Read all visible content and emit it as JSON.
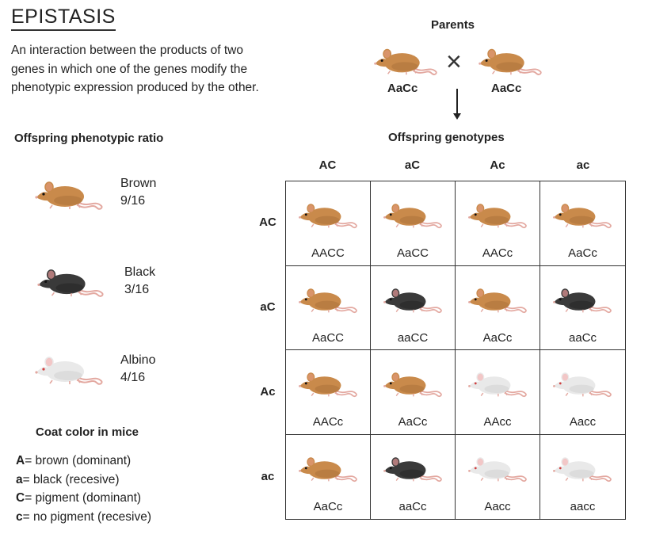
{
  "title": "EPISTASIS",
  "description": "An interaction between the products of two genes in which one of the genes modify the phenotypic expression produced by the other.",
  "colors": {
    "brown": "#c98a4b",
    "black": "#3a3a3a",
    "albino": "#e9e9e9",
    "tail": "#e3a8a0"
  },
  "ratio": {
    "heading": "Offspring phenotypic ratio",
    "items": [
      {
        "name": "Brown",
        "ratio": "9/16",
        "color": "brown"
      },
      {
        "name": "Black",
        "ratio": "3/16",
        "color": "black"
      },
      {
        "name": "Albino",
        "ratio": "4/16",
        "color": "albino"
      }
    ]
  },
  "key": {
    "heading": "Coat color in mice",
    "entries": [
      {
        "allele": "A",
        "text": "= brown (dominant)"
      },
      {
        "allele": "a",
        "text": "= black (recesive)"
      },
      {
        "allele": "C",
        "text": "= pigment (dominant)"
      },
      {
        "allele": "c",
        "text": "= no pigment (recesive)"
      }
    ]
  },
  "parents": {
    "heading": "Parents",
    "cross_symbol": "×",
    "left": "AaCc",
    "right": "AaCc"
  },
  "offspring": {
    "heading": "Offspring genotypes",
    "columns": [
      "AC",
      "aC",
      "Ac",
      "ac"
    ],
    "rows": [
      "AC",
      "aC",
      "Ac",
      "ac"
    ],
    "cells": [
      [
        {
          "genotype": "AACC",
          "color": "brown"
        },
        {
          "genotype": "AaCC",
          "color": "brown"
        },
        {
          "genotype": "AACc",
          "color": "brown"
        },
        {
          "genotype": "AaCc",
          "color": "brown"
        }
      ],
      [
        {
          "genotype": "AaCC",
          "color": "brown"
        },
        {
          "genotype": "aaCC",
          "color": "black"
        },
        {
          "genotype": "AaCc",
          "color": "brown"
        },
        {
          "genotype": "aaCc",
          "color": "black"
        }
      ],
      [
        {
          "genotype": "AACc",
          "color": "brown"
        },
        {
          "genotype": "AaCc",
          "color": "brown"
        },
        {
          "genotype": "AAcc",
          "color": "albino"
        },
        {
          "genotype": "Aacc",
          "color": "albino"
        }
      ],
      [
        {
          "genotype": "AaCc",
          "color": "brown"
        },
        {
          "genotype": "aaCc",
          "color": "black"
        },
        {
          "genotype": "Aacc",
          "color": "albino"
        },
        {
          "genotype": "aacc",
          "color": "albino"
        }
      ]
    ]
  }
}
